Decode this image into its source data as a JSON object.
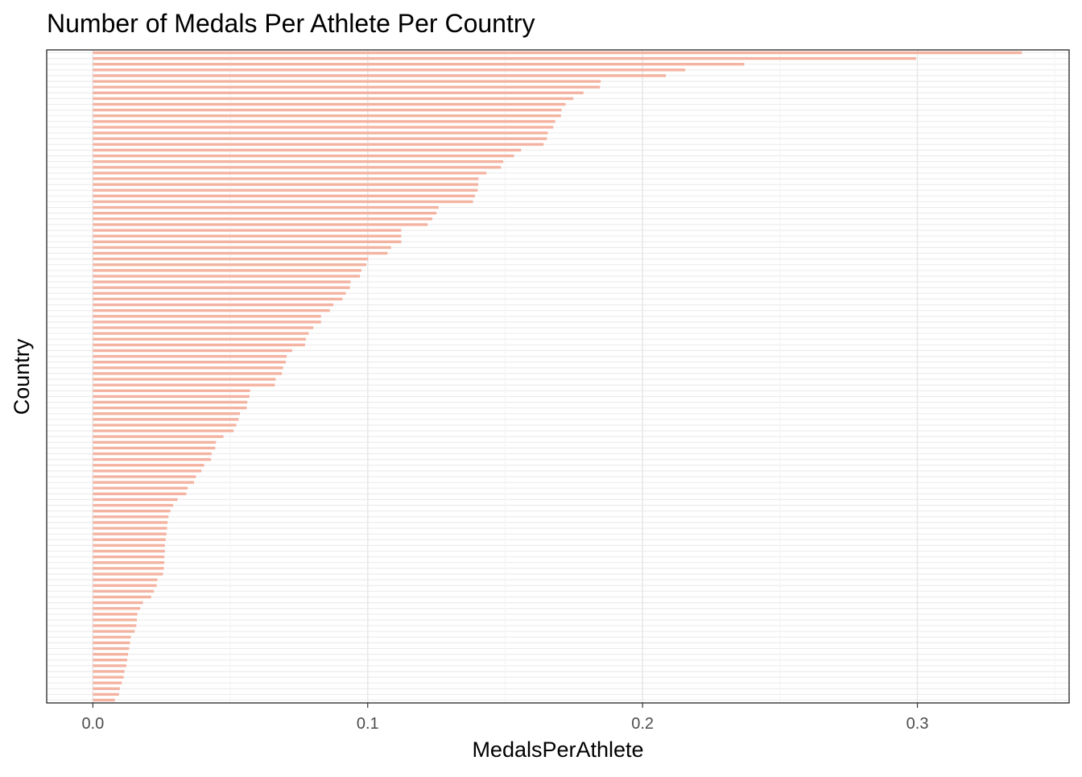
{
  "chart_data": {
    "type": "bar",
    "orientation": "horizontal",
    "title": "Number of Medals Per Athlete Per Country",
    "xlabel": "MedalsPerAthlete",
    "ylabel": "Country",
    "xlim": [
      -0.0168,
      0.3552
    ],
    "x_ticks": [
      0.0,
      0.1,
      0.2,
      0.3
    ],
    "x_tick_labels": [
      "0.0",
      "0.1",
      "0.2",
      "0.3"
    ],
    "grid": true,
    "bar_color": "#F4B3A1",
    "values": [
      0.338,
      0.2995,
      0.237,
      0.2155,
      0.2085,
      0.1848,
      0.1845,
      0.1785,
      0.1748,
      0.172,
      0.1705,
      0.1703,
      0.1682,
      0.1675,
      0.1655,
      0.1652,
      0.164,
      0.1558,
      0.1532,
      0.1493,
      0.1485,
      0.1432,
      0.1403,
      0.1402,
      0.14,
      0.139,
      0.1383,
      0.1258,
      0.125,
      0.1235,
      0.1218,
      0.1122,
      0.1122,
      0.1122,
      0.1085,
      0.1072,
      0.1002,
      0.0995,
      0.0977,
      0.0972,
      0.0938,
      0.0935,
      0.092,
      0.0908,
      0.0875,
      0.0862,
      0.083,
      0.083,
      0.0802,
      0.0785,
      0.0775,
      0.0772,
      0.0725,
      0.0705,
      0.0702,
      0.0692,
      0.0688,
      0.0665,
      0.0662,
      0.0572,
      0.057,
      0.0562,
      0.056,
      0.0535,
      0.053,
      0.0522,
      0.0512,
      0.0475,
      0.0448,
      0.0445,
      0.0432,
      0.043,
      0.0405,
      0.0395,
      0.0375,
      0.0368,
      0.0345,
      0.034,
      0.0308,
      0.0292,
      0.0282,
      0.0275,
      0.0272,
      0.027,
      0.0268,
      0.0265,
      0.0262,
      0.0262,
      0.026,
      0.026,
      0.0258,
      0.0255,
      0.0235,
      0.0232,
      0.0222,
      0.0212,
      0.0182,
      0.0172,
      0.0162,
      0.016,
      0.0158,
      0.0152,
      0.0138,
      0.0135,
      0.0132,
      0.0128,
      0.0125,
      0.0122,
      0.0115,
      0.0112,
      0.0105,
      0.0098,
      0.0095,
      0.008
    ]
  }
}
